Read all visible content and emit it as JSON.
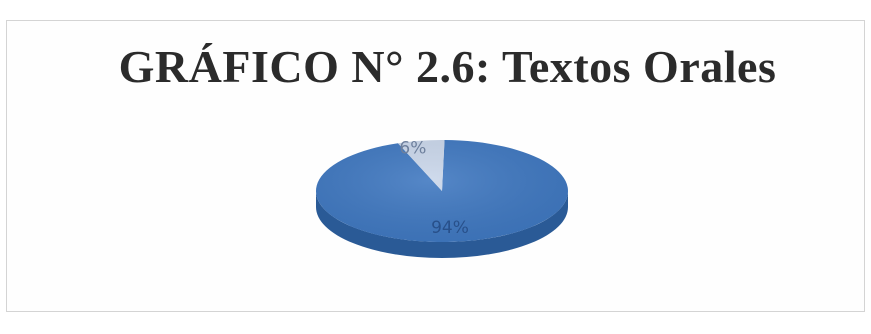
{
  "chart_data": {
    "type": "pie",
    "title": "GRÁFICO N° 2.6: Textos Orales",
    "slices": [
      {
        "label": "94%",
        "value": 94,
        "color": "#3e77c0",
        "side_color": "#2a5a96",
        "label_color": "#28508a"
      },
      {
        "label": "6%",
        "value": 6,
        "color": "#c9d6ea",
        "side_color": "#a8b8d0",
        "label_color": "#6d7f9c"
      }
    ],
    "style": "3d",
    "legend": "none"
  }
}
